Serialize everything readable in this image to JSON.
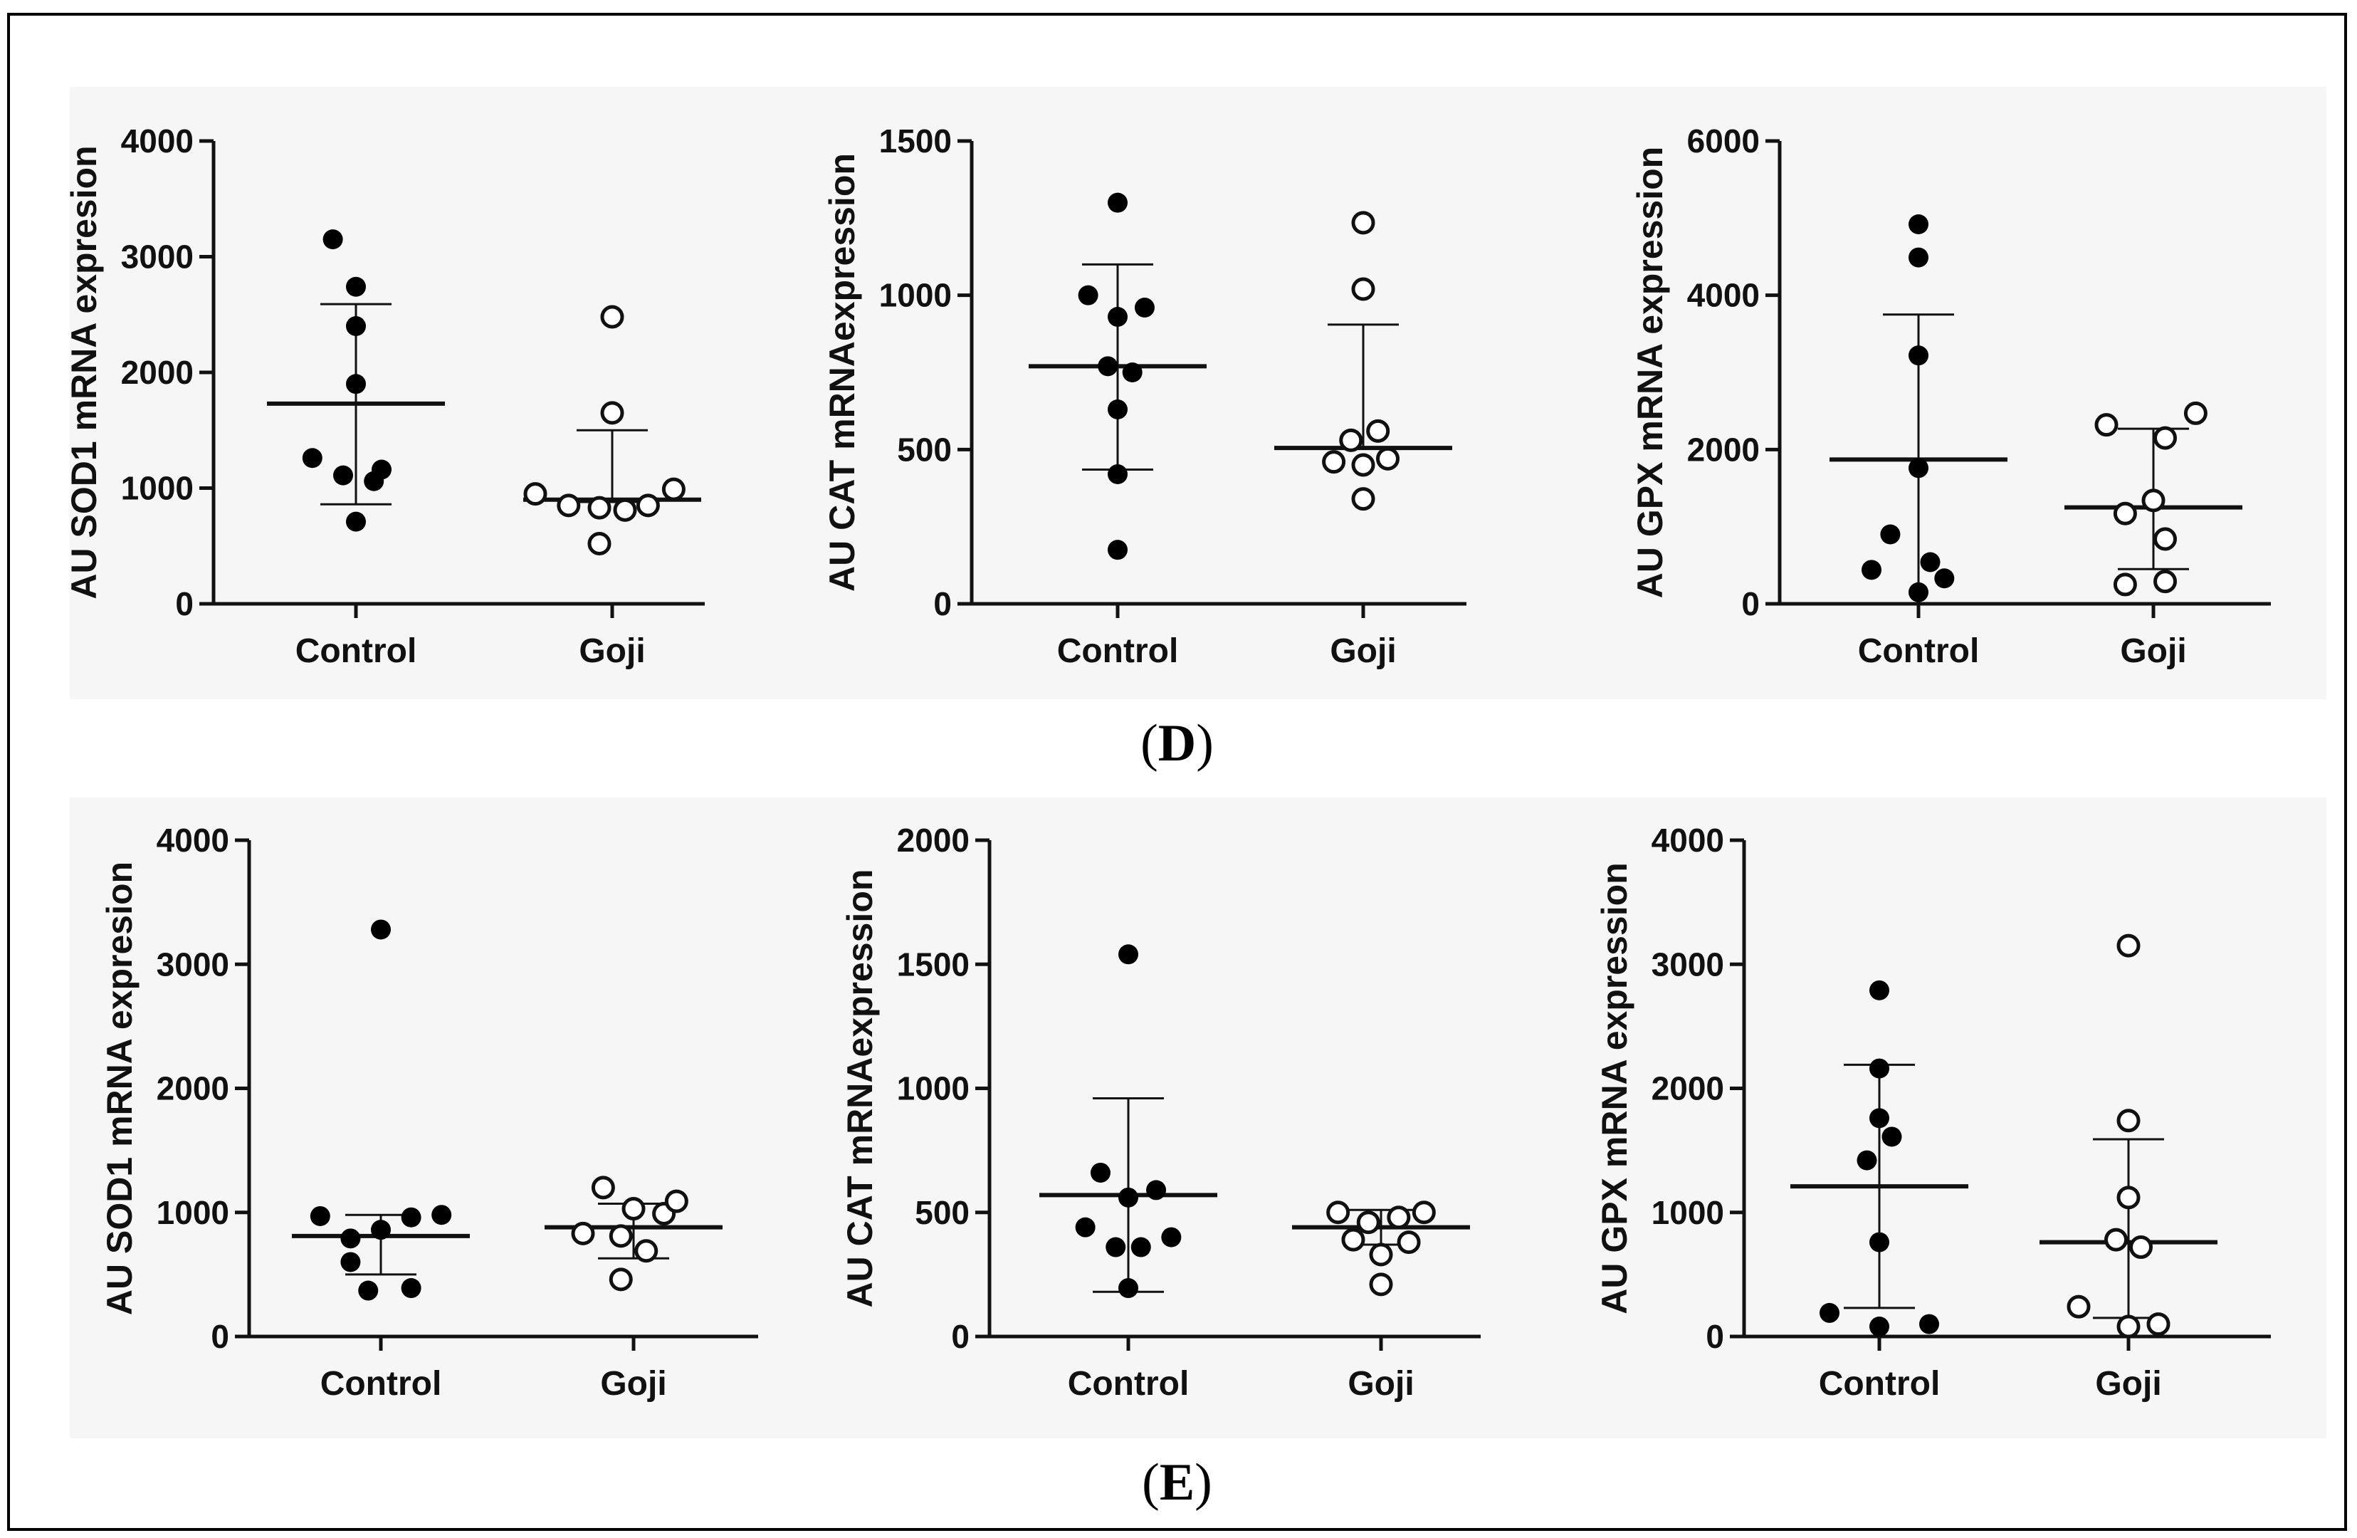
{
  "panels": [
    {
      "label": "D"
    },
    {
      "label": "E"
    }
  ],
  "colors": {
    "axis": "#111111",
    "filled": "#000000",
    "open_fill": "#ffffff",
    "background": "#f6f6f6"
  },
  "chart_data": [
    {
      "type": "scatter",
      "panel": "D",
      "ylabel": "AU SOD1 mRNA expresion",
      "categories": [
        "Control",
        "Goji"
      ],
      "ylim": [
        0,
        4000
      ],
      "yticks": [
        0,
        1000,
        2000,
        3000,
        4000
      ],
      "series": [
        {
          "name": "Control",
          "marker": "filled",
          "points": [
            [
              -0.09,
              3150
            ],
            [
              0.0,
              2740
            ],
            [
              0.0,
              2400
            ],
            [
              0.0,
              1900
            ],
            [
              -0.17,
              1260
            ],
            [
              -0.05,
              1110
            ],
            [
              0.07,
              1060
            ],
            [
              0.1,
              1160
            ],
            [
              0.0,
              710
            ]
          ],
          "mean": 1730,
          "sd_upper": 2590,
          "sd_lower": 860
        },
        {
          "name": "Goji",
          "marker": "open",
          "points": [
            [
              -0.3,
              950
            ],
            [
              0.0,
              2480
            ],
            [
              0.0,
              1650
            ],
            [
              -0.17,
              850
            ],
            [
              -0.05,
              830
            ],
            [
              0.05,
              810
            ],
            [
              0.14,
              850
            ],
            [
              0.24,
              990
            ],
            [
              -0.05,
              520
            ]
          ],
          "mean": 900,
          "sd_upper": 1500,
          "sd_lower": 880
        }
      ]
    },
    {
      "type": "scatter",
      "panel": "D",
      "ylabel": "AU CAT mRNAexpression",
      "categories": [
        "Control",
        "Goji"
      ],
      "ylim": [
        0,
        1500
      ],
      "yticks": [
        0,
        500,
        1000,
        1500
      ],
      "series": [
        {
          "name": "Control",
          "marker": "filled",
          "points": [
            [
              0.0,
              1300
            ],
            [
              -0.12,
              1000
            ],
            [
              0.0,
              930
            ],
            [
              0.11,
              960
            ],
            [
              -0.04,
              770
            ],
            [
              0.06,
              750
            ],
            [
              0.0,
              630
            ],
            [
              0.0,
              420
            ],
            [
              0.0,
              175
            ]
          ],
          "mean": 770,
          "sd_upper": 1100,
          "sd_lower": 435
        },
        {
          "name": "Goji",
          "marker": "open",
          "points": [
            [
              0.0,
              1235
            ],
            [
              0.0,
              1020
            ],
            [
              -0.05,
              530
            ],
            [
              0.06,
              560
            ],
            [
              -0.12,
              460
            ],
            [
              0.0,
              450
            ],
            [
              0.1,
              470
            ],
            [
              0.0,
              340
            ]
          ],
          "mean": 505,
          "sd_upper": 905,
          "sd_lower": 505
        }
      ]
    },
    {
      "type": "scatter",
      "panel": "D",
      "ylabel": "AU GPX mRNA expression",
      "categories": [
        "Control",
        "Goji"
      ],
      "ylim": [
        0,
        6000
      ],
      "yticks": [
        0,
        2000,
        4000,
        6000
      ],
      "series": [
        {
          "name": "Control",
          "marker": "filled",
          "points": [
            [
              0.0,
              4920
            ],
            [
              0.0,
              4490
            ],
            [
              0.0,
              3220
            ],
            [
              0.0,
              1760
            ],
            [
              -0.12,
              900
            ],
            [
              -0.2,
              440
            ],
            [
              0.05,
              540
            ],
            [
              0.11,
              330
            ],
            [
              0.0,
              150
            ]
          ],
          "mean": 1870,
          "sd_upper": 3750,
          "sd_lower": 0
        },
        {
          "name": "Goji",
          "marker": "open",
          "points": [
            [
              -0.2,
              2320
            ],
            [
              0.05,
              2150
            ],
            [
              0.18,
              2470
            ],
            [
              -0.12,
              1170
            ],
            [
              0.0,
              1340
            ],
            [
              0.05,
              840
            ],
            [
              -0.12,
              250
            ],
            [
              0.05,
              290
            ]
          ],
          "mean": 1250,
          "sd_upper": 2270,
          "sd_lower": 450
        }
      ]
    },
    {
      "type": "scatter",
      "panel": "E",
      "ylabel": "AU SOD1 mRNA expresion",
      "categories": [
        "Control",
        "Goji"
      ],
      "ylim": [
        0,
        4000
      ],
      "yticks": [
        0,
        1000,
        2000,
        3000,
        4000
      ],
      "series": [
        {
          "name": "Control",
          "marker": "filled",
          "points": [
            [
              0.0,
              3280
            ],
            [
              -0.24,
              970
            ],
            [
              -0.12,
              790
            ],
            [
              0.0,
              860
            ],
            [
              0.12,
              960
            ],
            [
              0.24,
              980
            ],
            [
              -0.12,
              600
            ],
            [
              -0.05,
              370
            ],
            [
              0.12,
              390
            ]
          ],
          "mean": 810,
          "sd_upper": 980,
          "sd_lower": 500
        },
        {
          "name": "Goji",
          "marker": "open",
          "points": [
            [
              -0.12,
              1200
            ],
            [
              0.0,
              1030
            ],
            [
              0.12,
              990
            ],
            [
              0.17,
              1090
            ],
            [
              -0.2,
              830
            ],
            [
              -0.05,
              810
            ],
            [
              0.05,
              690
            ],
            [
              -0.05,
              460
            ]
          ],
          "mean": 880,
          "sd_upper": 1070,
          "sd_lower": 630
        }
      ]
    },
    {
      "type": "scatter",
      "panel": "E",
      "ylabel": "AU CAT mRNAexpression",
      "categories": [
        "Control",
        "Goji"
      ],
      "ylim": [
        0,
        2000
      ],
      "yticks": [
        0,
        500,
        1000,
        1500,
        2000
      ],
      "series": [
        {
          "name": "Control",
          "marker": "filled",
          "points": [
            [
              0.0,
              1540
            ],
            [
              -0.11,
              660
            ],
            [
              0.11,
              590
            ],
            [
              0.0,
              560
            ],
            [
              -0.17,
              440
            ],
            [
              -0.05,
              360
            ],
            [
              0.05,
              360
            ],
            [
              0.17,
              400
            ],
            [
              0.0,
              195
            ]
          ],
          "mean": 570,
          "sd_upper": 960,
          "sd_lower": 180
        },
        {
          "name": "Goji",
          "marker": "open",
          "points": [
            [
              -0.17,
              500
            ],
            [
              -0.05,
              460
            ],
            [
              0.07,
              480
            ],
            [
              0.17,
              500
            ],
            [
              -0.11,
              390
            ],
            [
              0.0,
              330
            ],
            [
              0.11,
              380
            ],
            [
              0.0,
              210
            ]
          ],
          "mean": 440,
          "sd_upper": 510,
          "sd_lower": 370
        }
      ]
    },
    {
      "type": "scatter",
      "panel": "E",
      "ylabel": "AU GPX mRNA expression",
      "categories": [
        "Control",
        "Goji"
      ],
      "ylim": [
        0,
        4000
      ],
      "yticks": [
        0,
        1000,
        2000,
        3000,
        4000
      ],
      "series": [
        {
          "name": "Control",
          "marker": "filled",
          "points": [
            [
              0.0,
              2790
            ],
            [
              0.0,
              2160
            ],
            [
              0.0,
              1760
            ],
            [
              0.05,
              1610
            ],
            [
              -0.05,
              1420
            ],
            [
              0.0,
              760
            ],
            [
              -0.2,
              190
            ],
            [
              0.0,
              80
            ],
            [
              0.2,
              100
            ]
          ],
          "mean": 1210,
          "sd_upper": 2190,
          "sd_lower": 230
        },
        {
          "name": "Goji",
          "marker": "open",
          "points": [
            [
              0.0,
              3150
            ],
            [
              0.0,
              1740
            ],
            [
              0.0,
              1120
            ],
            [
              -0.05,
              780
            ],
            [
              0.05,
              720
            ],
            [
              -0.2,
              240
            ],
            [
              0.0,
              80
            ],
            [
              0.12,
              100
            ]
          ],
          "mean": 760,
          "sd_upper": 1590,
          "sd_lower": 150
        }
      ]
    }
  ]
}
